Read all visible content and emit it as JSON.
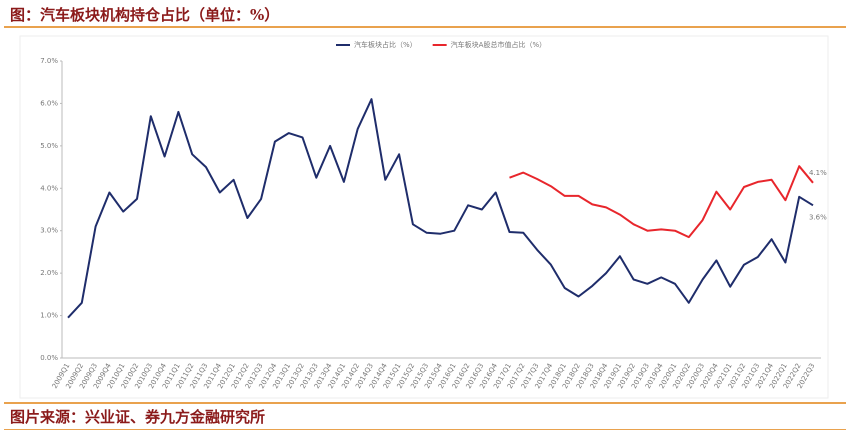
{
  "header": {
    "title": "图：汽车板块机构持仓占比（单位：%）"
  },
  "footer": {
    "source": "图片来源：兴业证、券九方金融研究所"
  },
  "chart_data": {
    "type": "line",
    "categories": [
      "2009Q1",
      "2009Q2",
      "2009Q3",
      "2009Q4",
      "2010Q1",
      "2010Q2",
      "2010Q3",
      "2010Q4",
      "2011Q1",
      "2011Q2",
      "2011Q3",
      "2011Q4",
      "2012Q1",
      "2012Q2",
      "2012Q3",
      "2012Q4",
      "2013Q1",
      "2013Q2",
      "2013Q3",
      "2013Q4",
      "2014Q1",
      "2014Q2",
      "2014Q3",
      "2014Q4",
      "2015Q1",
      "2015Q2",
      "2015Q3",
      "2015Q4",
      "2016Q1",
      "2016Q2",
      "2016Q3",
      "2016Q4",
      "2017Q1",
      "2017Q2",
      "2017Q3",
      "2017Q4",
      "2018Q1",
      "2018Q2",
      "2018Q3",
      "2018Q4",
      "2019Q1",
      "2019Q2",
      "2019Q3",
      "2019Q4",
      "2020Q1",
      "2020Q2",
      "2020Q3",
      "2020Q4",
      "2021Q1",
      "2021Q2",
      "2021Q3",
      "2021Q4",
      "2022Q1",
      "2022Q2",
      "2022Q3"
    ],
    "series": [
      {
        "name": "汽车板块占比（%）",
        "color": "#1f2d6b",
        "values": [
          0.95,
          1.3,
          3.1,
          3.9,
          3.45,
          3.75,
          5.7,
          4.75,
          5.8,
          4.8,
          4.5,
          3.9,
          4.2,
          3.3,
          3.75,
          5.1,
          5.3,
          5.2,
          4.25,
          5.0,
          4.15,
          5.4,
          6.1,
          4.2,
          4.8,
          3.15,
          2.95,
          2.93,
          3.0,
          3.6,
          3.5,
          3.9,
          2.97,
          2.95,
          2.55,
          2.2,
          1.65,
          1.45,
          1.7,
          2.0,
          2.4,
          1.85,
          1.75,
          1.9,
          1.75,
          1.3,
          1.85,
          2.3,
          1.68,
          2.2,
          2.38,
          2.8,
          2.25,
          3.8,
          3.6
        ],
        "value_labels": [
          null,
          null,
          null,
          null,
          null,
          null,
          null,
          null,
          null,
          null,
          null,
          null,
          null,
          null,
          null,
          null,
          null,
          null,
          null,
          null,
          null,
          null,
          null,
          null,
          null,
          null,
          null,
          null,
          null,
          null,
          null,
          null,
          null,
          null,
          null,
          null,
          null,
          null,
          null,
          null,
          null,
          null,
          null,
          null,
          null,
          null,
          null,
          null,
          null,
          null,
          null,
          null,
          null,
          null,
          "3.6%"
        ]
      },
      {
        "name": "汽车板块A股总市值占比（%）",
        "color": "#e8262c",
        "values": [
          null,
          null,
          null,
          null,
          null,
          null,
          null,
          null,
          null,
          null,
          null,
          null,
          null,
          null,
          null,
          null,
          null,
          null,
          null,
          null,
          null,
          null,
          null,
          null,
          null,
          null,
          null,
          null,
          null,
          null,
          null,
          null,
          4.25,
          4.37,
          4.22,
          4.05,
          3.82,
          3.82,
          3.62,
          3.55,
          3.38,
          3.15,
          3.0,
          3.03,
          3.0,
          2.85,
          3.25,
          3.92,
          3.5,
          4.03,
          4.15,
          4.2,
          3.72,
          4.52,
          4.13
        ],
        "value_labels": [
          null,
          null,
          null,
          null,
          null,
          null,
          null,
          null,
          null,
          null,
          null,
          null,
          null,
          null,
          null,
          null,
          null,
          null,
          null,
          null,
          null,
          null,
          null,
          null,
          null,
          null,
          null,
          null,
          null,
          null,
          null,
          null,
          null,
          null,
          null,
          null,
          null,
          null,
          null,
          null,
          null,
          null,
          null,
          null,
          null,
          null,
          null,
          null,
          null,
          null,
          null,
          null,
          null,
          null,
          "4.1%"
        ]
      }
    ],
    "ylim": [
      0,
      7
    ],
    "yticks": [
      {
        "value": 0,
        "label": "0.0%"
      },
      {
        "value": 1,
        "label": "1.0%"
      },
      {
        "value": 2,
        "label": "2.0%"
      },
      {
        "value": 3,
        "label": "3.0%"
      },
      {
        "value": 4,
        "label": "4.0%"
      },
      {
        "value": 5,
        "label": "5.0%"
      },
      {
        "value": 6,
        "label": "6.0%"
      },
      {
        "value": 7,
        "label": "7.0%"
      }
    ],
    "legend": "top"
  }
}
